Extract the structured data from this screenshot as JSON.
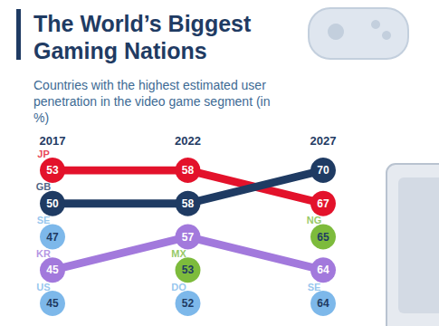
{
  "chart_data": {
    "type": "line",
    "title": "The World’s Biggest Gaming Nations",
    "subtitle": "Countries with the highest estimated user penetration in the video game segment (in %)",
    "categories": [
      "2017",
      "2022",
      "2027"
    ],
    "series": [
      {
        "name": "JP",
        "color": "#e3122b",
        "type": "line",
        "values": [
          53,
          58,
          67
        ]
      },
      {
        "name": "GB",
        "color": "#1f3b63",
        "type": "line",
        "values": [
          50,
          58,
          70
        ]
      },
      {
        "name": "KR",
        "color": "#a279dc",
        "type": "line",
        "values": [
          45,
          57,
          64
        ]
      },
      {
        "name": "SE",
        "color": "#7db8ea",
        "type": "scatter",
        "values": [
          47,
          null,
          64
        ]
      },
      {
        "name": "US",
        "color": "#7db8ea",
        "type": "scatter",
        "values": [
          45,
          null,
          null
        ]
      },
      {
        "name": "MX",
        "color": "#7dbb3c",
        "type": "scatter",
        "values": [
          null,
          53,
          null
        ]
      },
      {
        "name": "DO",
        "color": "#7db8ea",
        "type": "scatter",
        "values": [
          null,
          52,
          null
        ]
      },
      {
        "name": "NG",
        "color": "#7dbb3c",
        "type": "scatter",
        "values": [
          null,
          null,
          65
        ]
      }
    ],
    "data_labels": true,
    "tick_labels": "x",
    "grid": false,
    "marker": "circle"
  }
}
